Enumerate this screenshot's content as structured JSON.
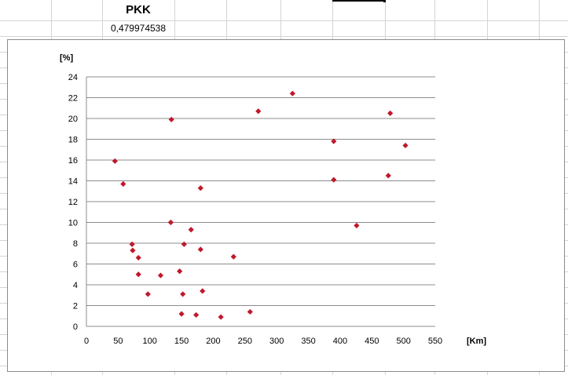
{
  "sheet": {
    "header_cell": "PKK",
    "value_cell": "0,479974538"
  },
  "chart_data": {
    "type": "scatter",
    "title": "",
    "xlabel": "[Km]",
    "ylabel": "[%]",
    "xlim": [
      0,
      550
    ],
    "ylim": [
      0,
      24
    ],
    "x_ticks": [
      "0",
      "50",
      "100",
      "150",
      "200",
      "250",
      "300",
      "350",
      "400",
      "450",
      "500",
      "550"
    ],
    "y_ticks": [
      "0",
      "2",
      "4",
      "6",
      "8",
      "10",
      "12",
      "14",
      "16",
      "18",
      "20",
      "22",
      "24"
    ],
    "grid": "horizontal",
    "marker": "diamond",
    "marker_color": "#c0182c",
    "series": [
      {
        "points": [
          [
            45,
            15.9
          ],
          [
            58,
            13.7
          ],
          [
            72,
            7.9
          ],
          [
            73,
            7.3
          ],
          [
            82,
            6.6
          ],
          [
            82,
            5.0
          ],
          [
            97,
            3.1
          ],
          [
            117,
            4.9
          ],
          [
            133,
            10.0
          ],
          [
            134,
            19.9
          ],
          [
            147,
            5.3
          ],
          [
            150,
            1.2
          ],
          [
            152,
            3.1
          ],
          [
            154,
            7.9
          ],
          [
            165,
            9.3
          ],
          [
            173,
            1.1
          ],
          [
            180,
            13.3
          ],
          [
            180,
            7.4
          ],
          [
            183,
            3.4
          ],
          [
            212,
            0.9
          ],
          [
            232,
            6.7
          ],
          [
            258,
            1.4
          ],
          [
            271,
            20.7
          ],
          [
            325,
            22.4
          ],
          [
            390,
            17.8
          ],
          [
            390,
            14.1
          ],
          [
            426,
            9.7
          ],
          [
            476,
            14.5
          ],
          [
            479,
            20.5
          ],
          [
            503,
            17.4
          ]
        ]
      }
    ]
  }
}
